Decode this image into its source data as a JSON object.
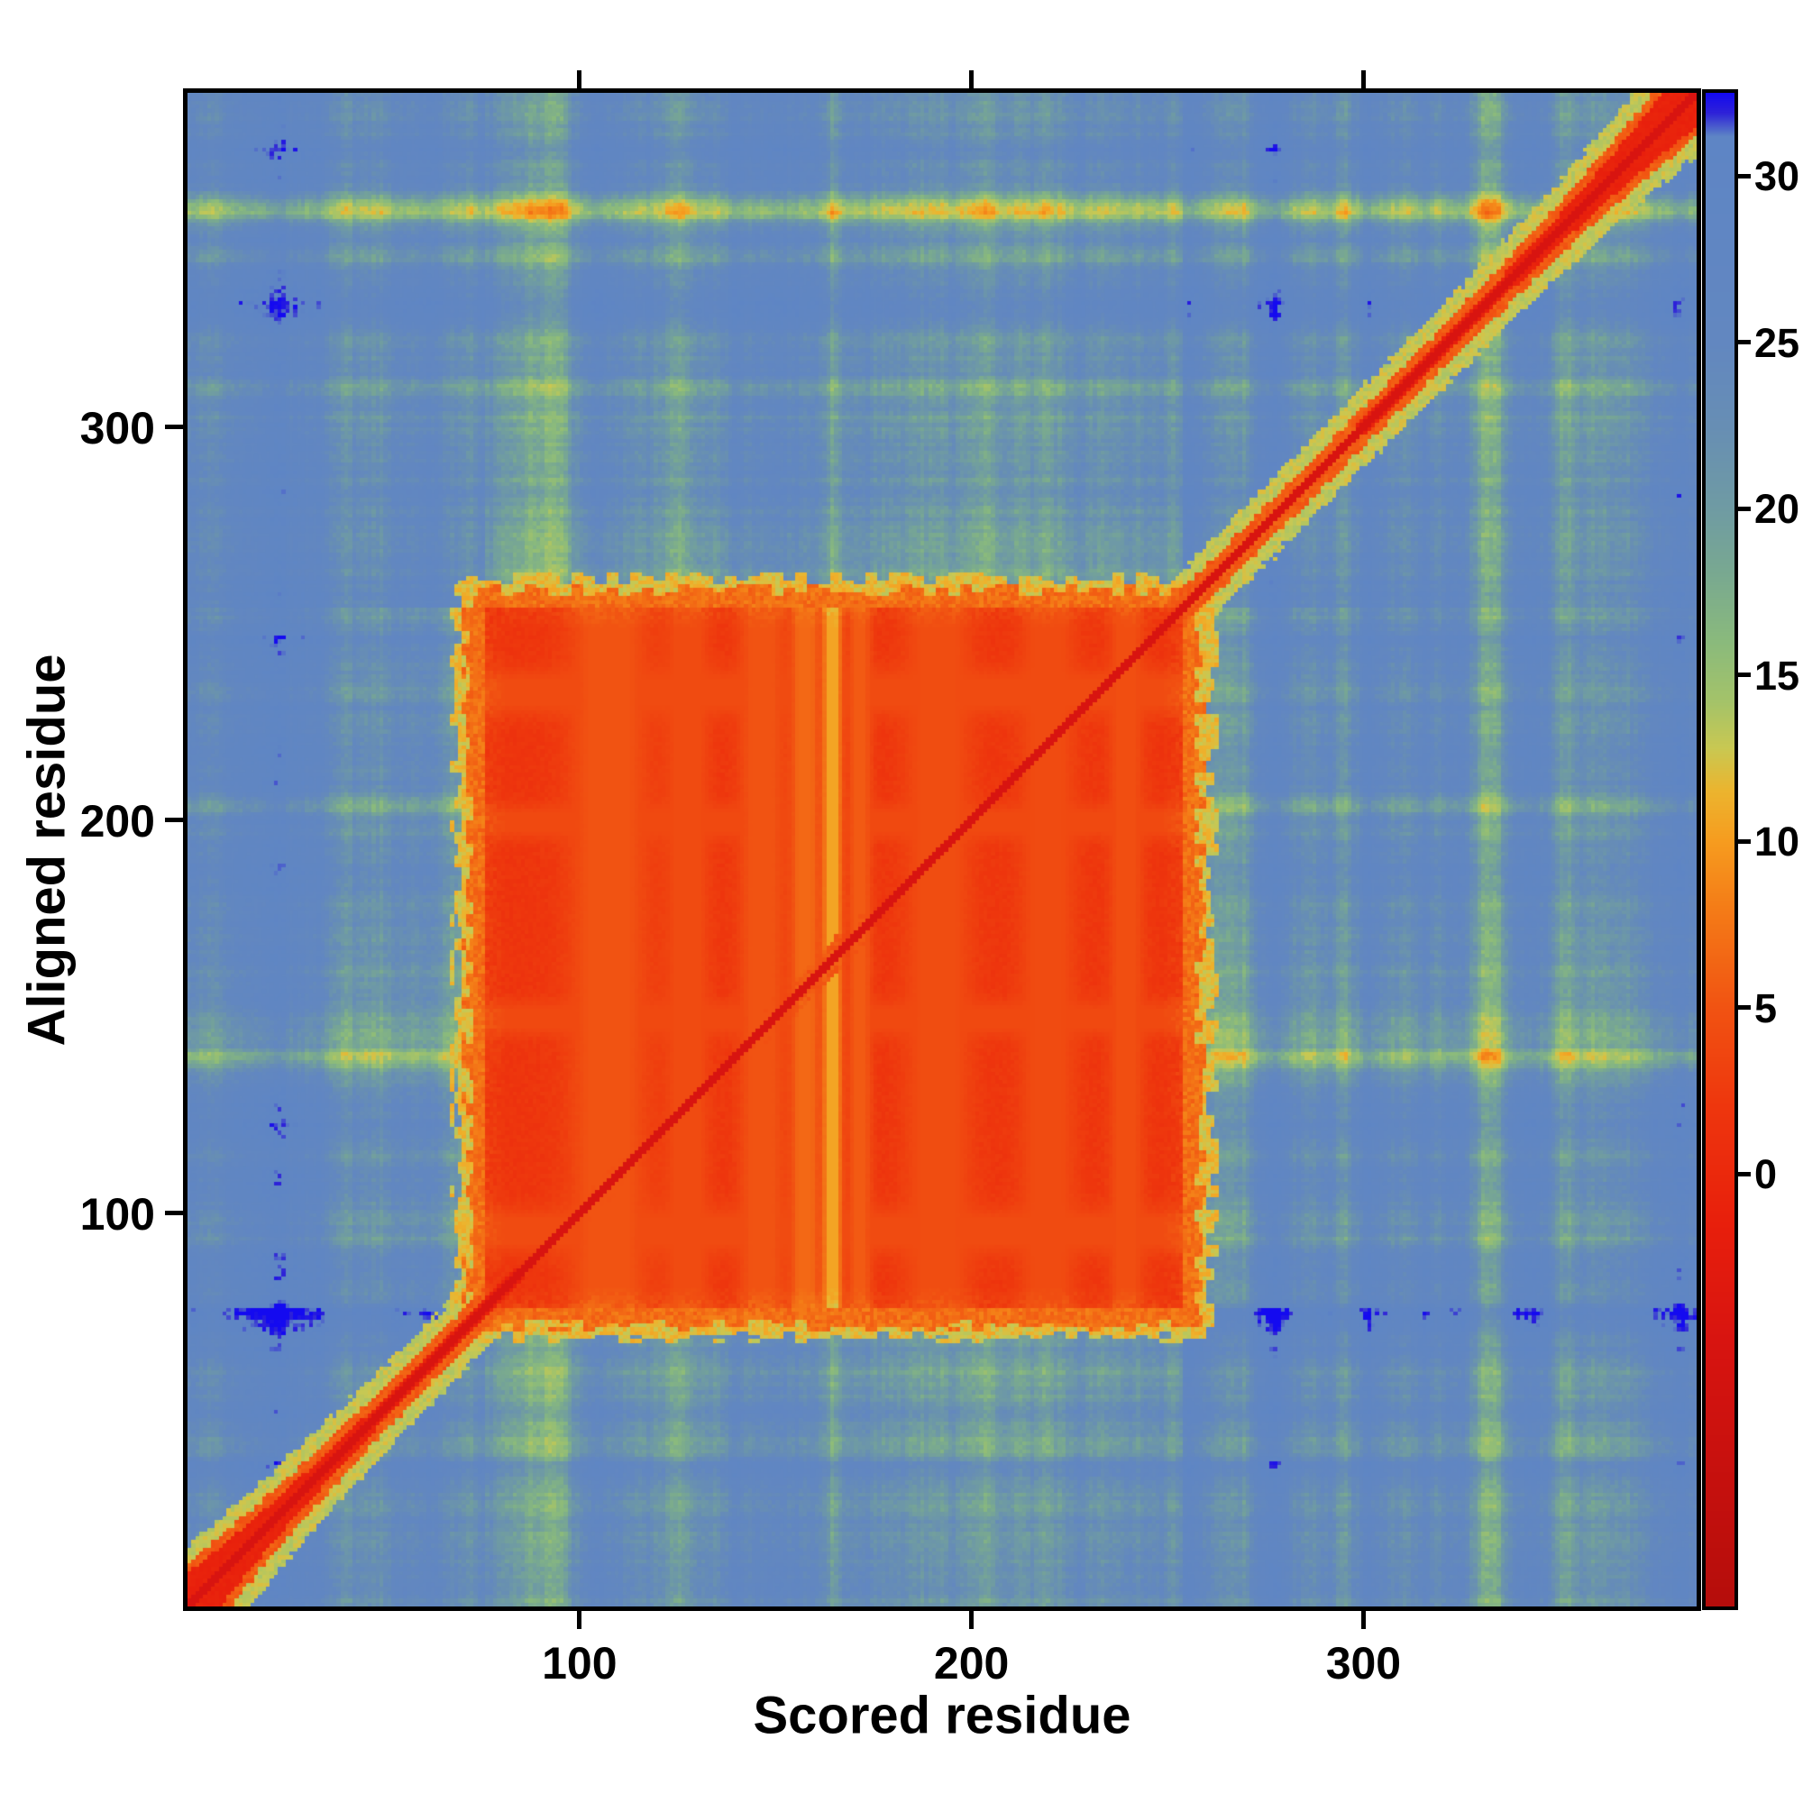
{
  "chart_data": {
    "type": "heatmap",
    "title": "",
    "xlabel": "Scored residue",
    "ylabel": "Aligned residue",
    "x_ticks": [
      100,
      200,
      300
    ],
    "y_ticks": [
      100,
      200,
      300
    ],
    "n_residues": 385,
    "axis_range": [
      1,
      385
    ],
    "colorbar": {
      "ticks": [
        0,
        5,
        10,
        15,
        20,
        25,
        30
      ],
      "value_min": -13,
      "value_max": 32.5,
      "orientation": "vertical-right"
    },
    "colormap_stops": [
      [
        -13,
        "#b50d0b"
      ],
      [
        -5,
        "#d81410"
      ],
      [
        -1.5,
        "#e81f0c"
      ],
      [
        2,
        "#ee360d"
      ],
      [
        5,
        "#f15312"
      ],
      [
        8,
        "#f47c17"
      ],
      [
        10,
        "#f69c1f"
      ],
      [
        11.5,
        "#ecb42e"
      ],
      [
        12.8,
        "#c9c852"
      ],
      [
        14.2,
        "#a4c369"
      ],
      [
        16,
        "#8aba7c"
      ],
      [
        18,
        "#79a990"
      ],
      [
        20,
        "#6f9ba3"
      ],
      [
        22.5,
        "#678eb4"
      ],
      [
        25,
        "#6287c0"
      ],
      [
        31.2,
        "#5e85c5"
      ],
      [
        31.9,
        "#2e22d8"
      ],
      [
        32.5,
        "#140af0"
      ]
    ],
    "field": {
      "seed": 7,
      "background_value": 25.5,
      "noise_amp": 2.0,
      "diagonal": {
        "core_value": -5,
        "band_value": -1,
        "halo_value": 5.5,
        "fringe_value": 13,
        "corner_widen": 8
      },
      "domain_block": {
        "range": [
          77,
          254
        ],
        "value": 1.2,
        "edge_value": 7,
        "edge_fringe_value": 12
      },
      "block_light_cols": [
        {
          "pos": 108,
          "w": 7,
          "v": 5
        },
        {
          "pos": 128,
          "w": 4,
          "v": 4.2
        },
        {
          "pos": 147,
          "w": 4,
          "v": 5
        },
        {
          "pos": 158,
          "w": 2.5,
          "v": 6.5
        },
        {
          "pos": 165,
          "w": 1.6,
          "v": 10.5
        },
        {
          "pos": 172,
          "w": 2,
          "v": 5.5
        },
        {
          "pos": 192,
          "w": 6,
          "v": 4.4
        },
        {
          "pos": 220,
          "w": 5,
          "v": 4.2
        },
        {
          "pos": 240,
          "w": 3,
          "v": 4.5
        }
      ],
      "block_light_rows": [
        {
          "pos": 96,
          "w": 4,
          "v": 4.2
        },
        {
          "pos": 150,
          "w": 3,
          "v": 4
        },
        {
          "pos": 200,
          "w": 3,
          "v": 4
        },
        {
          "pos": 233,
          "w": 4,
          "v": 4.2
        }
      ],
      "row_streaks": [
        {
          "pos": 356,
          "w": 3,
          "amp": 11
        },
        {
          "pos": 344,
          "w": 2,
          "amp": 5
        },
        {
          "pos": 310,
          "w": 2,
          "amp": 4
        },
        {
          "pos": 205,
          "w": 2,
          "amp": 3.5
        },
        {
          "pos": 140,
          "w": 2,
          "amp": 3
        },
        {
          "pos": 40,
          "w": 2,
          "amp": 3.5
        }
      ],
      "col_streaks": [
        {
          "pos": 332,
          "w": 3,
          "amp": 6.5
        },
        {
          "pos": 352,
          "w": 2,
          "amp": 4
        },
        {
          "pos": 296,
          "w": 2,
          "amp": 4
        },
        {
          "pos": 270,
          "w": 2,
          "amp": 3.5
        },
        {
          "pos": 165,
          "w": 1.5,
          "amp": 6
        },
        {
          "pos": 136,
          "w": 2,
          "amp": 3
        },
        {
          "pos": 96,
          "w": 2,
          "amp": 3
        },
        {
          "pos": 40,
          "w": 2,
          "amp": 3
        }
      ],
      "cross_arm_drop": {
        "base": 2.2,
        "near": 5.5,
        "decay": 18
      },
      "blue_specks": [
        {
          "x": 14,
          "y": 332
        },
        {
          "x": 381,
          "y": 283
        }
      ]
    },
    "description": "Predicted-aligned-error style residue heatmap: red diagonal (low error ~0), large low-error red domain block spanning residues ~77-254 on both axes, blue background ~25 with green/yellow streaks, vertical colorbar 0-30 at right."
  }
}
